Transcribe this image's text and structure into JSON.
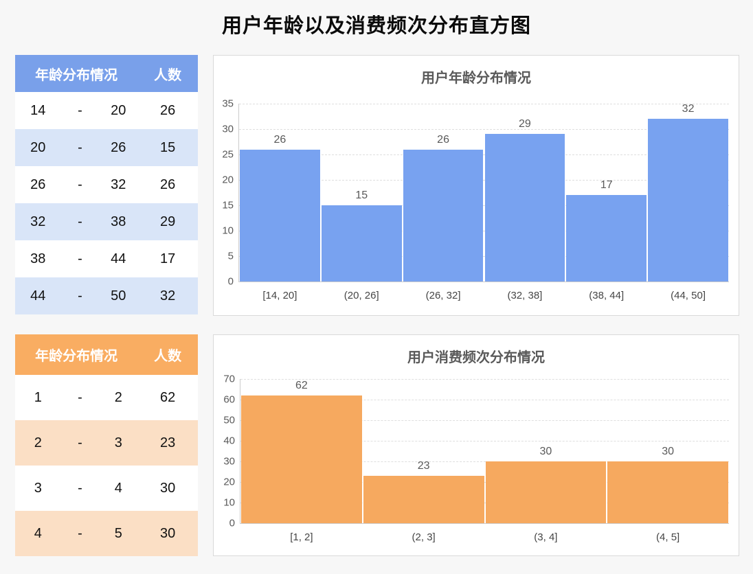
{
  "page": {
    "title": "用户年龄以及消费频次分布直方图",
    "background": "#f7f7f7"
  },
  "tables": [
    {
      "name": "age-distribution-table",
      "header": {
        "range": "年龄分布情况",
        "count": "人数"
      },
      "rows": [
        [
          "14",
          "-",
          "20",
          "26"
        ],
        [
          "20",
          "-",
          "26",
          "15"
        ],
        [
          "26",
          "-",
          "32",
          "26"
        ],
        [
          "32",
          "-",
          "38",
          "29"
        ],
        [
          "38",
          "-",
          "44",
          "17"
        ],
        [
          "44",
          "-",
          "50",
          "32"
        ]
      ],
      "colors": {
        "header_bg": "#79a0ea",
        "alt_row_bg": "#d9e5f8",
        "header_text": "#ffffff"
      }
    },
    {
      "name": "consumption-frequency-table",
      "header": {
        "range": "年龄分布情况",
        "count": "人数"
      },
      "rows": [
        [
          "1",
          "-",
          "2",
          "62"
        ],
        [
          "2",
          "-",
          "3",
          "23"
        ],
        [
          "3",
          "-",
          "4",
          "30"
        ],
        [
          "4",
          "-",
          "5",
          "30"
        ]
      ],
      "colors": {
        "header_bg": "#f9ad62",
        "alt_row_bg": "#fbdfc5",
        "header_text": "#ffffff"
      }
    }
  ],
  "chart_data": [
    {
      "type": "bar",
      "title": "用户年龄分布情况",
      "categories": [
        "[14, 20]",
        "(20, 26]",
        "(26, 32]",
        "(32, 38]",
        "(38, 44]",
        "(44, 50]"
      ],
      "values": [
        26,
        15,
        26,
        29,
        17,
        32
      ],
      "xlabel": "",
      "ylabel": "",
      "ylim": [
        0,
        35
      ],
      "ytick_step": 5,
      "bar_color": "#78a2f0",
      "grid": true,
      "legend": "none",
      "bar_layout": "histogram-adjacent",
      "value_labels": true
    },
    {
      "type": "bar",
      "title": "用户消费频次分布情况",
      "categories": [
        "[1, 2]",
        "(2, 3]",
        "(3, 4]",
        "(4, 5]"
      ],
      "values": [
        62,
        23,
        30,
        30
      ],
      "xlabel": "",
      "ylabel": "",
      "ylim": [
        0,
        70
      ],
      "ytick_step": 10,
      "bar_color": "#f6a95f",
      "grid": true,
      "legend": "none",
      "bar_layout": "histogram-adjacent",
      "value_labels": true
    }
  ]
}
